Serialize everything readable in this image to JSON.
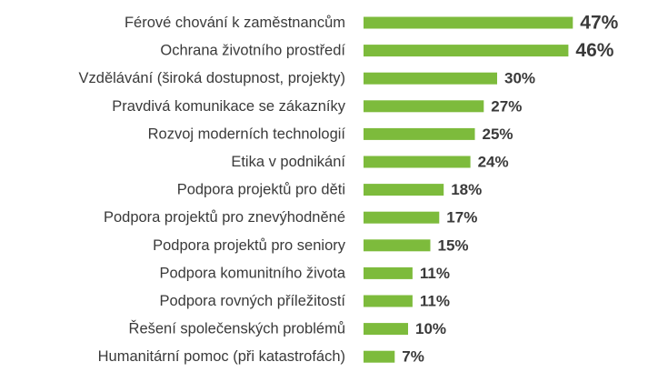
{
  "chart_data": {
    "type": "bar",
    "orientation": "horizontal",
    "categories": [
      "Férové chování k zaměstnancům",
      "Ochrana životního prostředí",
      "Vzdělávání (široká dostupnost, projekty)",
      "Pravdivá komunikace se zákazníky",
      "Rozvoj moderních technologií",
      "Etika v podnikání",
      "Podpora projektů pro děti",
      "Podpora projektů pro znevýhodněné",
      "Podpora projektů pro seniory",
      "Podpora komunitního života",
      "Podpora rovných příležitostí",
      "Řešení společenských problémů",
      "Humanitární pomoc (při katastrofách)"
    ],
    "values": [
      47,
      46,
      30,
      27,
      25,
      24,
      18,
      17,
      15,
      11,
      11,
      10,
      7
    ],
    "value_labels": [
      "47%",
      "46%",
      "30%",
      "27%",
      "25%",
      "24%",
      "18%",
      "17%",
      "15%",
      "11%",
      "11%",
      "10%",
      "7%"
    ],
    "unit": "%",
    "bar_color": "#7dbb3c",
    "text_color": "#3a3a3a",
    "title": "",
    "xlabel": "",
    "ylabel": "",
    "xlim": [
      0,
      50
    ],
    "grid": false,
    "legend": "none"
  }
}
